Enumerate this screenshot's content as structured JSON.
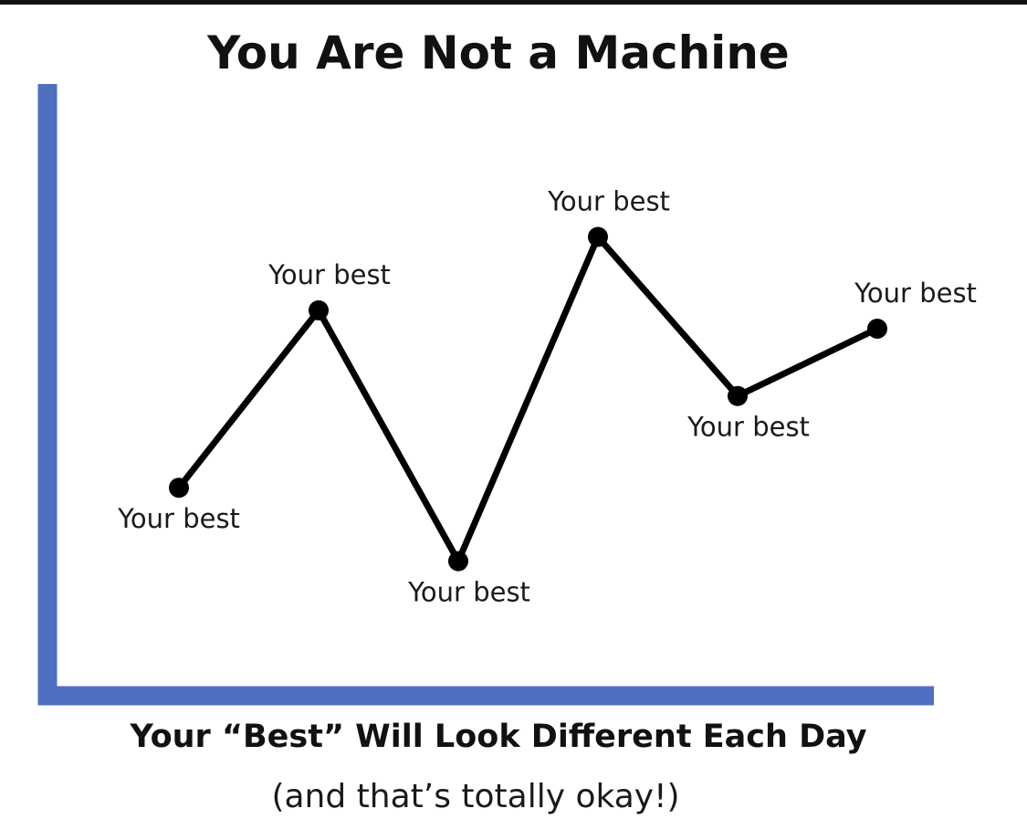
{
  "chart_data": {
    "type": "line",
    "title": "You Are Not a Machine",
    "xlabel": "Your “Best” Will Look Different Each Day",
    "subtitle": "(and that’s totally okay!)",
    "ylabel": "",
    "x": [
      1,
      2,
      3,
      4,
      5,
      6
    ],
    "ylim": [
      0,
      10
    ],
    "grid": false,
    "series": [
      {
        "values": [
          3.4,
          6.3,
          2.2,
          7.5,
          4.9,
          6.0
        ],
        "point_labels": [
          "Your best",
          "Your best",
          "Your best",
          "Your best",
          "Your best",
          "Your best"
        ],
        "label_sides": [
          "below",
          "above",
          "below",
          "above",
          "below",
          "above"
        ]
      }
    ]
  },
  "colors": {
    "axis": "#4f6fc0",
    "line": "#000000",
    "text": "#1a1a1a"
  }
}
